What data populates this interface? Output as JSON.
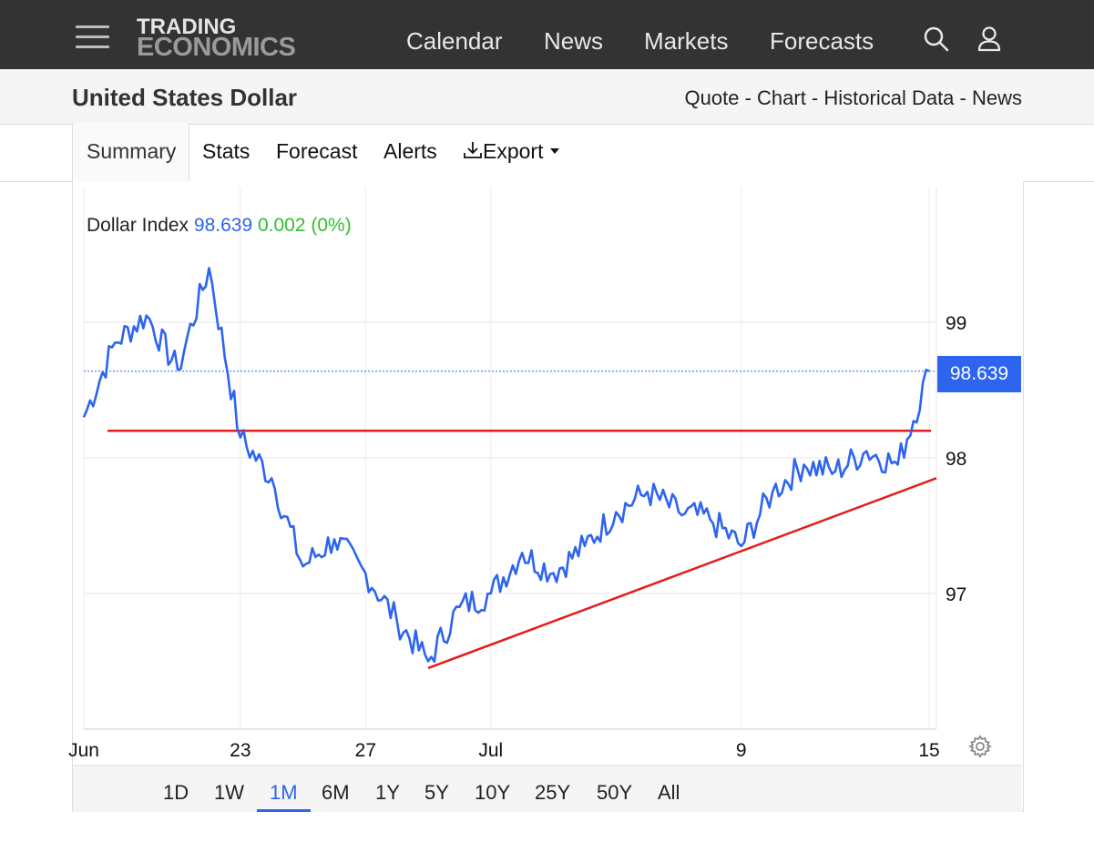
{
  "header": {
    "logo_line1": "TRADING",
    "logo_line2": "ECONOMICS",
    "nav": [
      "Calendar",
      "News",
      "Markets",
      "Forecasts"
    ],
    "icons": [
      "menu-icon",
      "search-icon",
      "user-icon"
    ]
  },
  "subheader": {
    "title": "United States Dollar",
    "links": [
      "Quote",
      "Chart",
      "Historical Data",
      "News"
    ],
    "separator": " - "
  },
  "tabs": {
    "items": [
      "Summary",
      "Stats",
      "Forecast",
      "Alerts"
    ],
    "export_label": "Export",
    "active": "Summary"
  },
  "legend": {
    "name": "Dollar Index",
    "value": "98.639",
    "change": "0.002 (0%)"
  },
  "price_tag": "98.639",
  "ranges": {
    "items": [
      "1D",
      "1W",
      "1M",
      "6M",
      "1Y",
      "5Y",
      "10Y",
      "25Y",
      "50Y",
      "All"
    ],
    "active": "1M"
  },
  "colors": {
    "line": "#2d64f0",
    "trendline": "#e31b1b",
    "positive": "#2fbf2f",
    "topbar": "#333333"
  },
  "chart_data": {
    "type": "line",
    "series": [
      {
        "name": "Dollar Index",
        "x": [
          "Jun 18",
          "Jun 19",
          "Jun 20",
          "Jun 21",
          "Jun 22",
          "Jun 23",
          "Jun 24",
          "Jun 25",
          "Jun 26",
          "Jun 27",
          "Jun 28",
          "Jun 29",
          "Jun 30",
          "Jul 1",
          "Jul 2",
          "Jul 3",
          "Jul 4",
          "Jul 5",
          "Jul 6",
          "Jul 7",
          "Jul 8",
          "Jul 9",
          "Jul 10",
          "Jul 11",
          "Jul 12",
          "Jul 13",
          "Jul 14",
          "Jul 15"
        ],
        "values": [
          98.3,
          98.85,
          99.05,
          98.65,
          99.4,
          98.15,
          97.85,
          97.2,
          97.4,
          97.15,
          96.8,
          96.5,
          96.9,
          97.0,
          97.3,
          97.15,
          97.35,
          97.6,
          97.75,
          97.6,
          97.55,
          97.35,
          97.75,
          97.95,
          97.9,
          98.05,
          97.95,
          98.64
        ]
      }
    ],
    "x_tick_labels": [
      "Jun",
      "23",
      "27",
      "Jul",
      "9",
      "15"
    ],
    "y_tick_labels": [
      "99",
      "98",
      "97"
    ],
    "ylim": [
      96.0,
      100.0
    ],
    "last_value": 98.639,
    "annotations": [
      {
        "type": "horizontal-line",
        "color": "red",
        "y": 98.2
      },
      {
        "type": "trendline",
        "color": "red",
        "from": {
          "x": "Jun 29",
          "y": 96.45
        },
        "to": {
          "x": "Jul 15",
          "y": 97.85
        }
      }
    ],
    "grid": true,
    "legend": "top-left"
  }
}
